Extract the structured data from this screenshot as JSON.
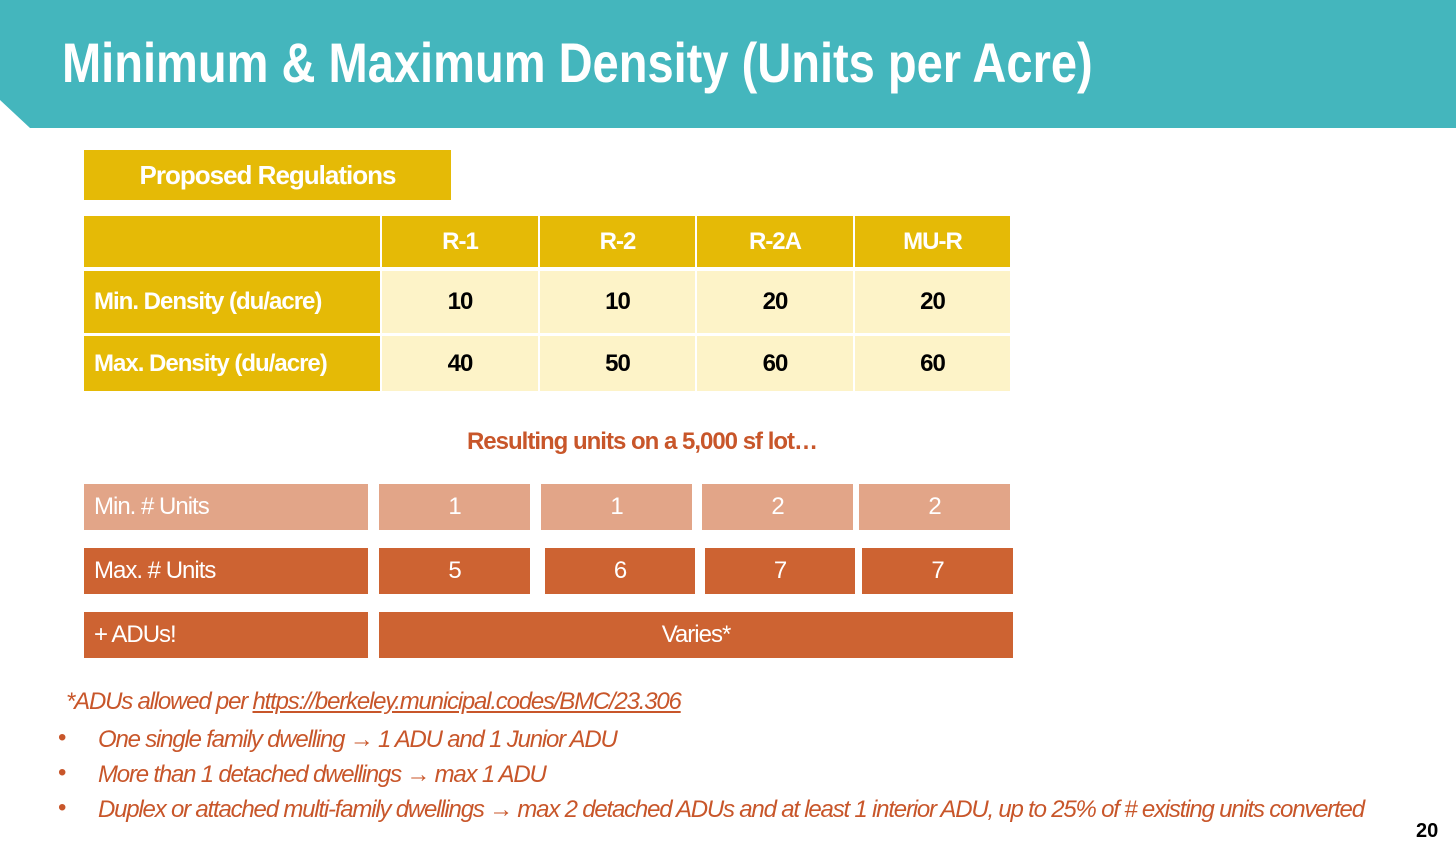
{
  "header": {
    "title": "Minimum & Maximum Density (Units per Acre)"
  },
  "section_label": "Proposed Regulations",
  "table": {
    "columns": [
      "R-1",
      "R-2",
      "R-2A",
      "MU-R"
    ],
    "rows": [
      {
        "label": "Min. Density (du/acre)",
        "values": [
          10,
          10,
          20,
          20
        ]
      },
      {
        "label": "Max. Density (du/acre)",
        "values": [
          40,
          50,
          60,
          60
        ]
      }
    ]
  },
  "results": {
    "title": "Resulting units on a 5,000 sf lot…",
    "rows": [
      {
        "label": "Min. # Units",
        "values": [
          1,
          1,
          2,
          2
        ]
      },
      {
        "label": "Max. # Units",
        "values": [
          5,
          6,
          7,
          7
        ]
      },
      {
        "label": "+ ADUs!",
        "value": "Varies*"
      }
    ]
  },
  "footnote": {
    "intro": "*ADUs allowed per ",
    "link": "https://berkeley.municipal.codes/BMC/23.306",
    "bullets": [
      "One single family dwelling → 1 ADU and 1 Junior ADU",
      "More than 1 detached dwellings → max 1 ADU",
      "Duplex or attached multi-family dwellings → max 2 detached ADUs  and at least 1 interior ADU, up to 25% of # existing units converted"
    ]
  },
  "page_number": 20
}
